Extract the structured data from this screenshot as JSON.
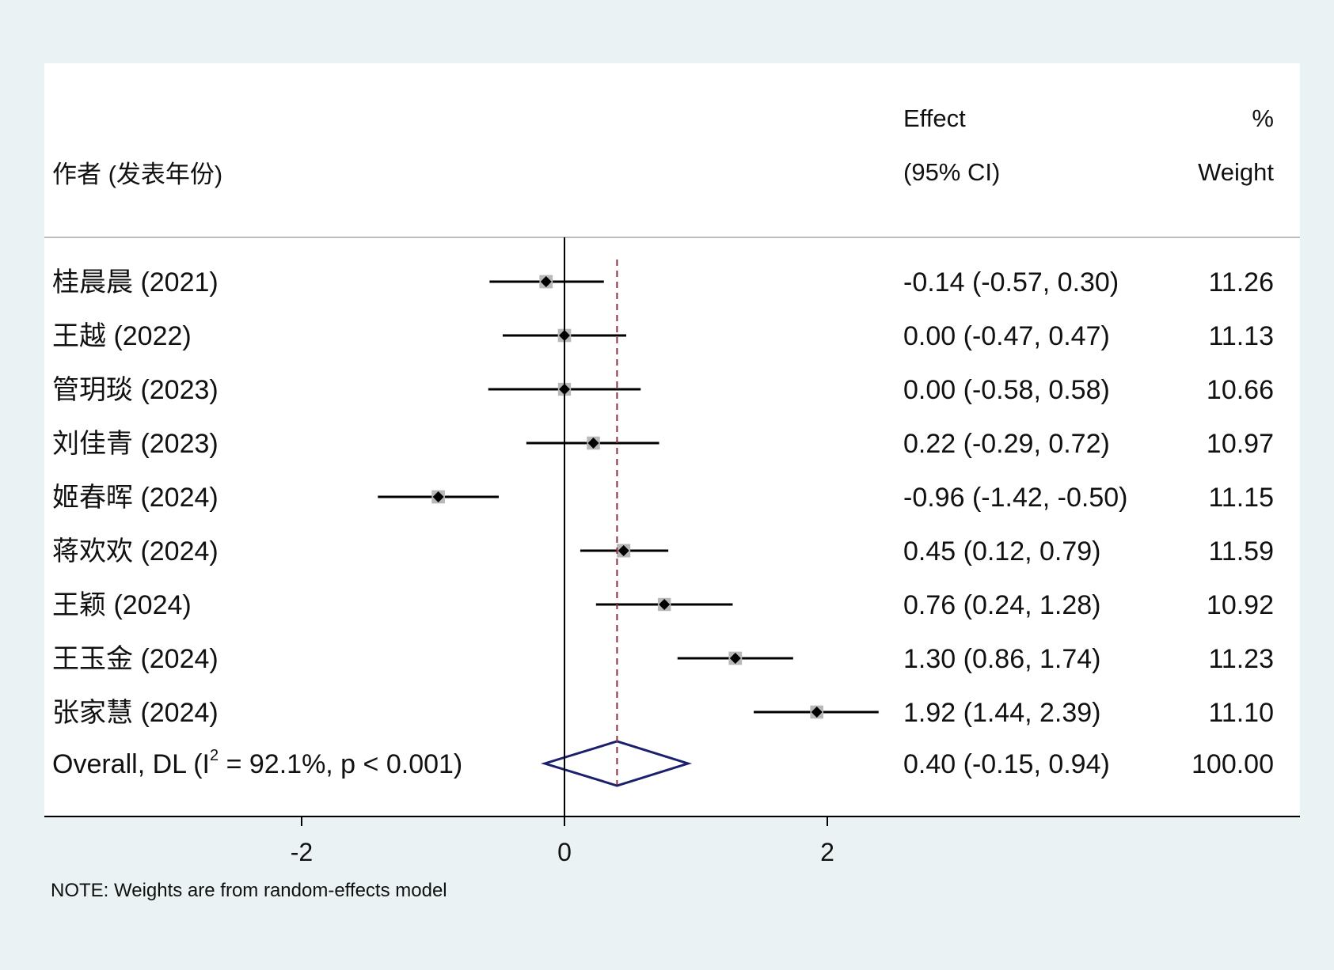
{
  "chart_data": {
    "type": "forest",
    "headers": {
      "study": "作者 (发表年份)",
      "effect_line1": "Effect",
      "effect_line2": "(95% CI)",
      "weight_line1": "%",
      "weight_line2": "Weight"
    },
    "studies": [
      {
        "label": "桂晨晨 (2021)",
        "effect": -0.14,
        "lower": -0.57,
        "upper": 0.3,
        "ci_text": "-0.14 (-0.57, 0.30)",
        "weight": 11.26,
        "weight_text": "11.26"
      },
      {
        "label": "王越 (2022)",
        "effect": 0.0,
        "lower": -0.47,
        "upper": 0.47,
        "ci_text": "0.00 (-0.47, 0.47)",
        "weight": 11.13,
        "weight_text": "11.13"
      },
      {
        "label": "管玥琰 (2023)",
        "effect": 0.0,
        "lower": -0.58,
        "upper": 0.58,
        "ci_text": "0.00 (-0.58, 0.58)",
        "weight": 10.66,
        "weight_text": "10.66"
      },
      {
        "label": "刘佳青 (2023)",
        "effect": 0.22,
        "lower": -0.29,
        "upper": 0.72,
        "ci_text": "0.22 (-0.29, 0.72)",
        "weight": 10.97,
        "weight_text": "10.97"
      },
      {
        "label": "姬春晖 (2024)",
        "effect": -0.96,
        "lower": -1.42,
        "upper": -0.5,
        "ci_text": "-0.96 (-1.42, -0.50)",
        "weight": 11.15,
        "weight_text": "11.15"
      },
      {
        "label": "蒋欢欢 (2024)",
        "effect": 0.45,
        "lower": 0.12,
        "upper": 0.79,
        "ci_text": "0.45 (0.12, 0.79)",
        "weight": 11.59,
        "weight_text": "11.59"
      },
      {
        "label": "王颖 (2024)",
        "effect": 0.76,
        "lower": 0.24,
        "upper": 1.28,
        "ci_text": "0.76 (0.24, 1.28)",
        "weight": 10.92,
        "weight_text": "10.92"
      },
      {
        "label": "王玉金 (2024)",
        "effect": 1.3,
        "lower": 0.86,
        "upper": 1.74,
        "ci_text": "1.30 (0.86, 1.74)",
        "weight": 11.23,
        "weight_text": "11.23"
      },
      {
        "label": "张家慧 (2024)",
        "effect": 1.92,
        "lower": 1.44,
        "upper": 2.39,
        "ci_text": "1.92 (1.44, 2.39)",
        "weight": 11.1,
        "weight_text": "11.10"
      }
    ],
    "overall": {
      "label_prefix": "Overall, DL (I",
      "label_sup": "2",
      "label_suffix": " = 92.1%, p < 0.001)",
      "effect": 0.4,
      "lower": -0.15,
      "upper": 0.94,
      "ci_text": "0.40 (-0.15, 0.94)",
      "weight_text": "100.00"
    },
    "x_ticks": [
      -2,
      0,
      2
    ],
    "x_tick_labels": [
      "-2",
      "0",
      "2"
    ],
    "xlim": [
      -4,
      5.7
    ],
    "null_line": 0,
    "note": "NOTE: Weights are from random-effects model",
    "colors": {
      "panel": "#ffffff",
      "background": "#eaf2f3",
      "ci_line": "#000000",
      "marker": "#000000",
      "weight_box": "#b8b8b8",
      "overall_diamond": "#1a1f6e",
      "overall_line": "#8b2e3e"
    }
  }
}
